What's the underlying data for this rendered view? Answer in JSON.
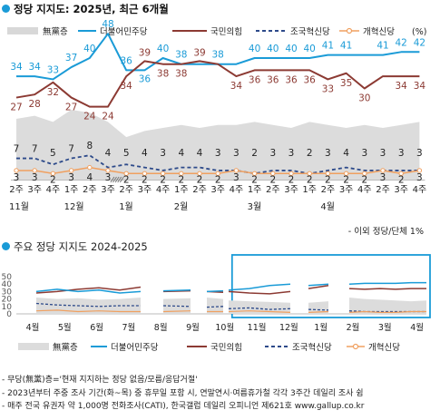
{
  "chart_data": [
    {
      "type": "line",
      "title": "정당 지지도: 2025년, 최근 6개월",
      "legend_placement": "top",
      "x_tick_labels": [
        "2주",
        "3주",
        "4주",
        "1주",
        "2주",
        "3주",
        "2주",
        "3주",
        "4주",
        "1주",
        "2주",
        "3주",
        "4주",
        "1주",
        "2주",
        "3주",
        "1주",
        "2주",
        "3주",
        "4주",
        "2주",
        "3주",
        "4주"
      ],
      "month_labels": [
        {
          "label": "11월",
          "index": 0
        },
        {
          "label": "12월",
          "index": 3
        },
        {
          "label": "1월",
          "index": 6
        },
        {
          "label": "2월",
          "index": 9
        },
        {
          "label": "3월",
          "index": 13
        },
        {
          "label": "4월",
          "index": 17
        }
      ],
      "gap_after_indices": [
        5
      ],
      "series": [
        {
          "name": "무당층",
          "kind": "area",
          "color": "#d8d8d8",
          "values": [
            20,
            21,
            19,
            23,
            22,
            19,
            14,
            16,
            17,
            18,
            17,
            18,
            18,
            19,
            18,
            17,
            19,
            18,
            17,
            18,
            17,
            18,
            19
          ]
        },
        {
          "name": "더불어민주당",
          "kind": "line",
          "color": "#1a9bd7",
          "values": [
            34,
            34,
            33,
            37,
            40,
            48,
            36,
            36,
            40,
            38,
            38,
            38,
            38,
            40,
            40,
            40,
            40,
            41,
            41,
            41,
            41,
            42,
            42
          ],
          "labels": [
            "34",
            "34",
            "33",
            "37",
            "40",
            "48",
            "36",
            "36",
            "40",
            "38",
            "",
            "38",
            "",
            "40",
            "40",
            "40",
            "40",
            "41",
            "41",
            "",
            "41",
            "42",
            "42"
          ]
        },
        {
          "name": "국민의힘",
          "kind": "line",
          "color": "#8c3a33",
          "values": [
            27,
            28,
            32,
            27,
            24,
            24,
            34,
            39,
            38,
            38,
            39,
            38,
            34,
            36,
            36,
            36,
            36,
            33,
            35,
            30,
            34,
            34,
            34
          ],
          "labels": [
            "27",
            "28",
            "32",
            "27",
            "24",
            "24",
            "34",
            "39",
            "38",
            "38",
            "39",
            "",
            "34",
            "36",
            "36",
            "36",
            "36",
            "33",
            "35",
            "30",
            "",
            "34",
            "34"
          ]
        },
        {
          "name": "조국혁신당",
          "kind": "dashed",
          "color": "#2d4a8a",
          "values": [
            7,
            7,
            5,
            7,
            8,
            4,
            5,
            4,
            3,
            4,
            4,
            3,
            3,
            2,
            3,
            3,
            2,
            3,
            4,
            3,
            3,
            3,
            3
          ],
          "labels": [
            "7",
            "7",
            "5",
            "7",
            "8",
            "4",
            "5",
            "4",
            "3",
            "4",
            "4",
            "3",
            "3",
            "2",
            "3",
            "3",
            "2",
            "3",
            "4",
            "3",
            "3",
            "3",
            "3"
          ]
        },
        {
          "name": "개혁신당",
          "kind": "line-circle",
          "color": "#f0a060",
          "values": [
            3,
            3,
            2,
            3,
            4,
            3,
            2,
            2,
            2,
            2,
            2,
            2,
            3,
            2,
            2,
            2,
            2,
            2,
            2,
            2,
            3,
            2,
            3
          ],
          "labels": [
            "3",
            "3",
            "2",
            "3",
            "4",
            "3",
            "2",
            "2",
            "2",
            "2",
            "2",
            "2",
            "3",
            "2",
            "2",
            "2",
            "2",
            "2",
            "2",
            "2",
            "3",
            "2",
            "3"
          ]
        }
      ],
      "legend_unit": "(%)",
      "note": "- 이외 정당/단체 1%"
    },
    {
      "type": "line",
      "title": "주요 정당 지지도 2024-2025",
      "ylim": [
        0,
        50
      ],
      "y_ticks": [
        0,
        10,
        20,
        30,
        40,
        50
      ],
      "x_tick_labels": [
        "4월",
        "5월",
        "6월",
        "7월",
        "8월",
        "9월",
        "10월",
        "11월",
        "12월",
        "1월",
        "2월",
        "3월",
        "4월"
      ],
      "highlight_range": [
        "10월",
        "4월"
      ],
      "series": [
        {
          "name": "무당층"
        },
        {
          "name": "더불어민주당"
        },
        {
          "name": "국민의힘"
        },
        {
          "name": "조국혁신당"
        },
        {
          "name": "개혁신당"
        }
      ]
    }
  ],
  "legend": {
    "nonpartisan": "無黨층",
    "dpk": "더불어민주당",
    "ppp": "국민의힘",
    "rebuilding": "조국혁신당",
    "reform": "개혁신당",
    "unit": "(%)"
  },
  "footnotes": [
    "- 무당(無黨)층='현재 지지하는 정당 없음/모름/응답거절'",
    "- 2023년부터 주중 조사 기간(화~목) 중 휴무일 포함 시, 연말연시·여름휴가철 각각 3주간 데일리 조사 쉼",
    "- 매주 전국 유권자 약 1,000명 전화조사(CATI), 한국갤럽 데일리 오피니언 제621호 www.gallup.co.kr"
  ]
}
